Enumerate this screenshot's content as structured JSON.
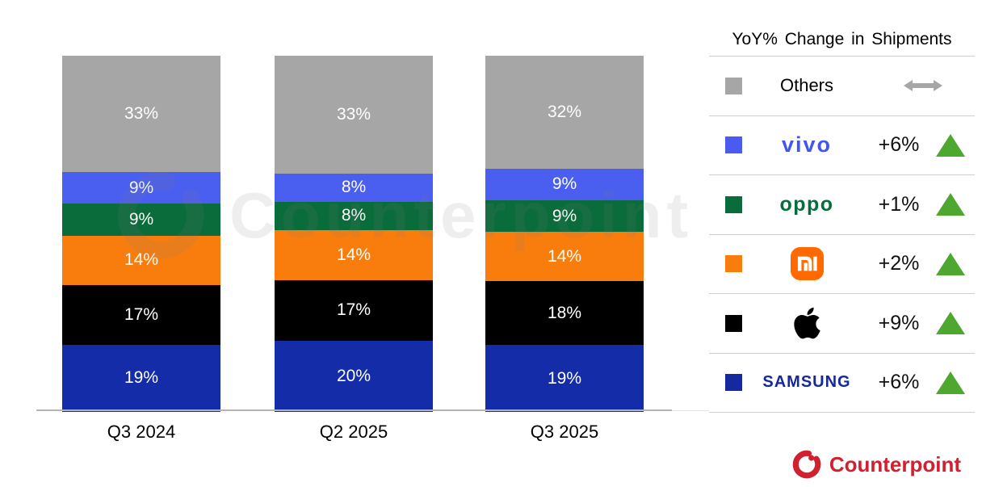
{
  "legend": {
    "title": "YoY% Change in Shipments",
    "trend_up_color": "#4EA72E",
    "flat_arrow_color": "#A6A6A6",
    "rows": [
      {
        "id": "others",
        "label": "Others",
        "logo": "text",
        "swatch_color": "#A6A6A6",
        "change": "",
        "trend": "flat"
      },
      {
        "id": "vivo",
        "label": "vivo",
        "logo": "vivo",
        "swatch_color": "#4A5CF0",
        "change": "+6%",
        "trend": "up"
      },
      {
        "id": "oppo",
        "label": "oppo",
        "logo": "oppo",
        "swatch_color": "#0A6B3B",
        "change": "+1%",
        "trend": "up"
      },
      {
        "id": "xiaomi",
        "label": "mi",
        "logo": "xiaomi",
        "swatch_color": "#F97D0D",
        "change": "+2%",
        "trend": "up"
      },
      {
        "id": "apple",
        "label": "Apple",
        "logo": "apple",
        "swatch_color": "#000000",
        "change": "+9%",
        "trend": "up"
      },
      {
        "id": "samsung",
        "label": "SAMSUNG",
        "logo": "samsung",
        "swatch_color": "#1428A0",
        "change": "+6%",
        "trend": "up"
      }
    ]
  },
  "chart_data": {
    "type": "bar",
    "stacked": true,
    "unit": "%",
    "categories": [
      "Q3 2024",
      "Q2 2025",
      "Q3 2025"
    ],
    "stack_order": "bottom-to-top",
    "value_labels": "inside, white",
    "legend_position": "right",
    "series": [
      {
        "name": "Samsung",
        "color": "#152CA8",
        "values": [
          19,
          20,
          19
        ]
      },
      {
        "name": "Apple",
        "color": "#000000",
        "values": [
          17,
          17,
          18
        ]
      },
      {
        "name": "Xiaomi",
        "color": "#F97D0D",
        "values": [
          14,
          14,
          14
        ]
      },
      {
        "name": "OPPO",
        "color": "#0A6B3B",
        "values": [
          9,
          8,
          9
        ]
      },
      {
        "name": "vivo",
        "color": "#4A5FEF",
        "values": [
          9,
          8,
          9
        ]
      },
      {
        "name": "Others",
        "color": "#A6A6A6",
        "values": [
          33,
          33,
          32
        ]
      }
    ]
  },
  "watermark": {
    "text": "Counterpoint"
  },
  "branding": {
    "name": "Counterpoint",
    "color": "#D1202F"
  }
}
